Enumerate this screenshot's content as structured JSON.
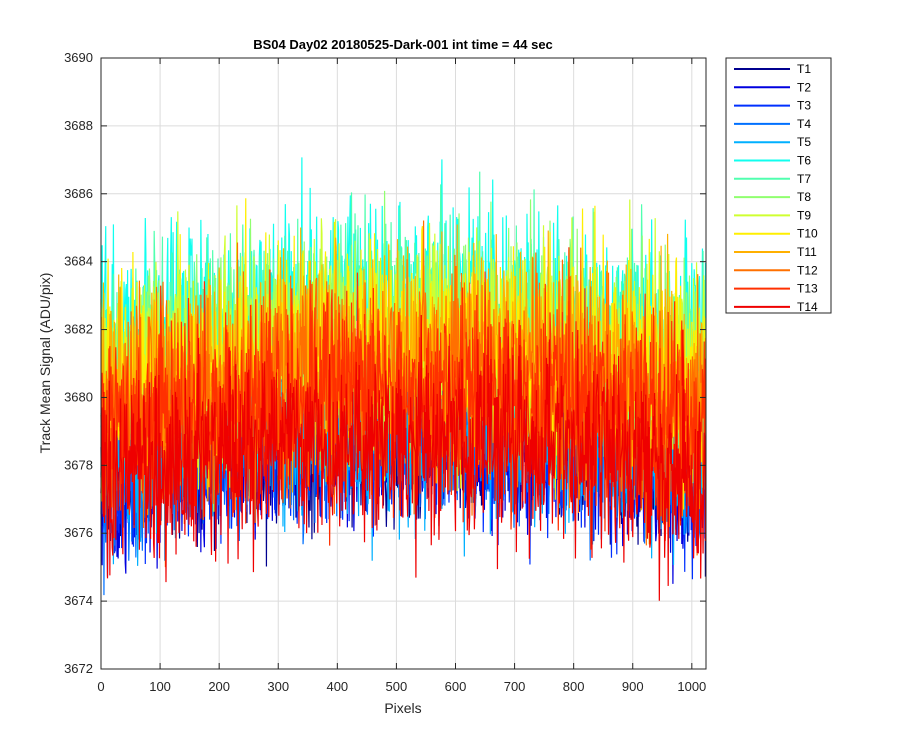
{
  "chart_data": {
    "type": "line",
    "title": "BS04 Day02 20180525-Dark-001 int time = 44 sec",
    "xlabel": "Pixels",
    "ylabel": "Track Mean Signal (ADU/pix)",
    "xlim": [
      0,
      1024
    ],
    "ylim": [
      3672,
      3690
    ],
    "xticks": [
      0,
      100,
      200,
      300,
      400,
      500,
      600,
      700,
      800,
      900,
      1000
    ],
    "yticks": [
      3672,
      3674,
      3676,
      3678,
      3680,
      3682,
      3684,
      3686,
      3688,
      3690
    ],
    "grid": true,
    "legend_position": "outside-right",
    "series": [
      {
        "name": "T1",
        "color": "#00008f",
        "level": 3679.0,
        "spread": 1.3
      },
      {
        "name": "T2",
        "color": "#0000df",
        "level": 3679.0,
        "spread": 1.3
      },
      {
        "name": "T3",
        "color": "#0030ff",
        "level": 3679.1,
        "spread": 1.3
      },
      {
        "name": "T4",
        "color": "#0070ff",
        "level": 3679.2,
        "spread": 1.35
      },
      {
        "name": "T5",
        "color": "#00b0ff",
        "level": 3679.4,
        "spread": 1.4
      },
      {
        "name": "T6",
        "color": "#10ffef",
        "level": 3682.6,
        "spread": 1.6
      },
      {
        "name": "T7",
        "color": "#50ffaf",
        "level": 3682.2,
        "spread": 1.6
      },
      {
        "name": "T8",
        "color": "#90ff6f",
        "level": 3681.8,
        "spread": 1.6
      },
      {
        "name": "T9",
        "color": "#cfff30",
        "level": 3681.6,
        "spread": 1.6
      },
      {
        "name": "T10",
        "color": "#ffef00",
        "level": 3681.4,
        "spread": 1.6
      },
      {
        "name": "T11",
        "color": "#ffb000",
        "level": 3681.0,
        "spread": 1.6
      },
      {
        "name": "T12",
        "color": "#ff7000",
        "level": 3680.6,
        "spread": 1.6
      },
      {
        "name": "T13",
        "color": "#ff3000",
        "level": 3680.2,
        "spread": 1.6
      },
      {
        "name": "T14",
        "color": "#ef0000",
        "level": 3678.8,
        "spread": 1.4
      }
    ]
  }
}
